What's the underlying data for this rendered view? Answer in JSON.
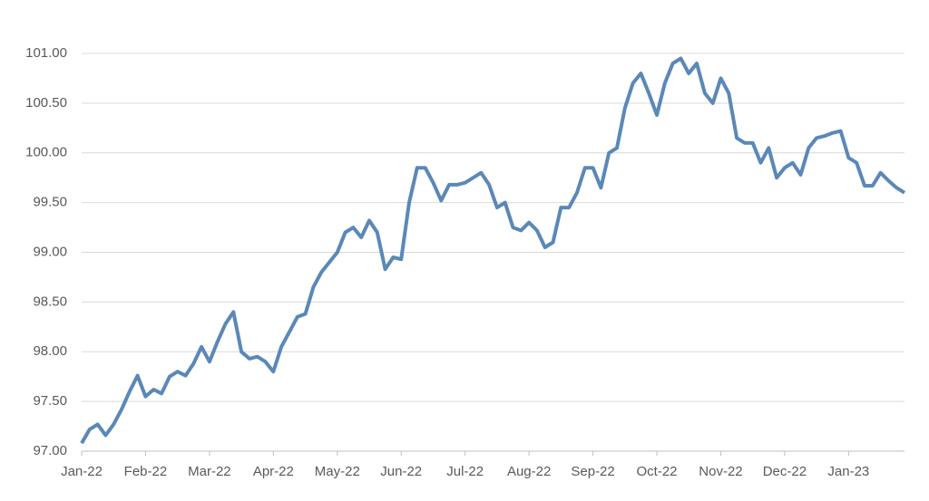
{
  "chart_data": {
    "type": "line",
    "categories": [
      "Jan-22",
      null,
      null,
      null,
      null,
      null,
      null,
      null,
      "Feb-22",
      null,
      null,
      null,
      null,
      null,
      null,
      null,
      "Mar-22",
      null,
      null,
      null,
      null,
      null,
      null,
      null,
      "Apr-22",
      null,
      null,
      null,
      null,
      null,
      null,
      null,
      "May-22",
      null,
      null,
      null,
      null,
      null,
      null,
      null,
      "Jun-22",
      null,
      null,
      null,
      null,
      null,
      null,
      null,
      "Jul-22",
      null,
      null,
      null,
      null,
      null,
      null,
      null,
      "Aug-22",
      null,
      null,
      null,
      null,
      null,
      null,
      null,
      "Sep-22",
      null,
      null,
      null,
      null,
      null,
      null,
      null,
      "Oct-22",
      null,
      null,
      null,
      null,
      null,
      null,
      null,
      "Nov-22",
      null,
      null,
      null,
      null,
      null,
      null,
      null,
      "Dec-22",
      null,
      null,
      null,
      null,
      null,
      null,
      null,
      "Jan-23",
      null,
      null,
      null,
      null,
      null,
      null,
      null
    ],
    "series": [
      {
        "color": "#5a88b8",
        "values": [
          97.08,
          97.22,
          97.27,
          97.16,
          97.27,
          97.42,
          97.6,
          97.76,
          97.55,
          97.62,
          97.58,
          97.75,
          97.8,
          97.76,
          97.88,
          98.05,
          97.9,
          98.1,
          98.28,
          98.4,
          98.0,
          97.93,
          97.95,
          97.9,
          97.8,
          98.05,
          98.2,
          98.35,
          98.38,
          98.65,
          98.8,
          98.9,
          99.0,
          99.2,
          99.25,
          99.15,
          99.32,
          99.2,
          98.83,
          98.95,
          98.93,
          99.5,
          99.85,
          99.85,
          99.7,
          99.52,
          99.68,
          99.68,
          99.7,
          99.75,
          99.8,
          99.68,
          99.45,
          99.5,
          99.25,
          99.22,
          99.3,
          99.22,
          99.05,
          99.1,
          99.45,
          99.45,
          99.6,
          99.85,
          99.85,
          99.65,
          100.0,
          100.05,
          100.45,
          100.7,
          100.8,
          100.6,
          100.38,
          100.7,
          100.9,
          100.95,
          100.8,
          100.9,
          100.6,
          100.5,
          100.75,
          100.6,
          100.15,
          100.1,
          100.1,
          99.9,
          100.05,
          99.75,
          99.85,
          99.9,
          99.78,
          100.05,
          100.15,
          100.17,
          100.2,
          100.22,
          99.95,
          99.9,
          99.67,
          99.67,
          99.8,
          99.72,
          99.65,
          99.6
        ]
      }
    ],
    "ylim": [
      97,
      101
    ],
    "yticks": [
      {
        "value": 97,
        "label": "97.00"
      },
      {
        "value": 97.5,
        "label": "97.50"
      },
      {
        "value": 98,
        "label": "98.00"
      },
      {
        "value": 98.5,
        "label": "98.50"
      },
      {
        "value": 99,
        "label": "99.00"
      },
      {
        "value": 99.5,
        "label": "99.50"
      },
      {
        "value": 100,
        "label": "100.00"
      },
      {
        "value": 100.5,
        "label": "100.50"
      },
      {
        "value": 101,
        "label": "101.00"
      }
    ],
    "grid": true
  }
}
